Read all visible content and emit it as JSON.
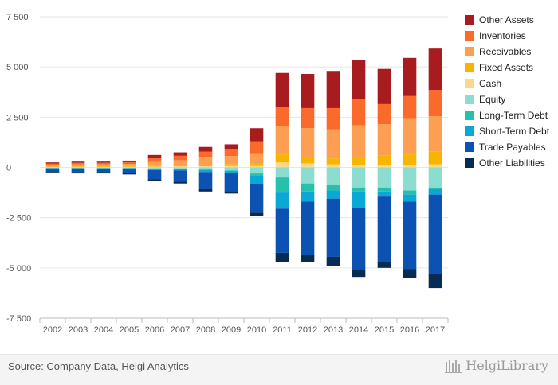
{
  "chart_data": {
    "type": "bar",
    "stacked": true,
    "categories": [
      "2002",
      "2003",
      "2004",
      "2005",
      "2006",
      "2007",
      "2008",
      "2009",
      "2010",
      "2011",
      "2012",
      "2013",
      "2014",
      "2015",
      "2016",
      "2017"
    ],
    "y_ticks": [
      "7 500",
      "5 000",
      "2 500",
      "0",
      "-2 500",
      "-5 000",
      "-7 500"
    ],
    "y_tick_values": [
      7500,
      5000,
      2500,
      0,
      -2500,
      -5000,
      -7500
    ],
    "ylim": [
      -7500,
      7500
    ],
    "legend_position": "right",
    "assets": [
      {
        "name": "Cash",
        "color": "#fdd78a",
        "values": [
          20,
          25,
          25,
          30,
          40,
          50,
          60,
          70,
          80,
          250,
          200,
          150,
          100,
          100,
          100,
          150
        ]
      },
      {
        "name": "Fixed Assets",
        "color": "#f7b500",
        "values": [
          30,
          35,
          35,
          40,
          50,
          60,
          80,
          100,
          120,
          400,
          300,
          300,
          400,
          500,
          550,
          650
        ]
      },
      {
        "name": "Receivables",
        "color": "#fd9f52",
        "values": [
          70,
          90,
          90,
          100,
          180,
          250,
          350,
          400,
          500,
          1400,
          1450,
          1450,
          1600,
          1550,
          1800,
          1750
        ]
      },
      {
        "name": "Inventories",
        "color": "#fa6a2a",
        "values": [
          70,
          80,
          80,
          90,
          180,
          220,
          300,
          350,
          600,
          950,
          1000,
          1050,
          1300,
          1000,
          1100,
          1300
        ]
      },
      {
        "name": "Other Assets",
        "color": "#a81c20",
        "values": [
          60,
          60,
          60,
          80,
          170,
          170,
          230,
          230,
          650,
          1700,
          1700,
          1850,
          1950,
          1750,
          1900,
          2100
        ]
      }
    ],
    "liabilities": [
      {
        "name": "Equity",
        "color": "#8cdcd0",
        "values": [
          -20,
          -20,
          -25,
          -30,
          -60,
          -70,
          -100,
          -150,
          -300,
          -500,
          -800,
          -850,
          -1000,
          -1000,
          -1150,
          -1000
        ]
      },
      {
        "name": "Long-Term Debt",
        "color": "#27c1ab",
        "values": [
          -10,
          -10,
          -10,
          -10,
          -20,
          -20,
          -30,
          -30,
          -100,
          -750,
          -400,
          -300,
          -200,
          -200,
          -200,
          -50
        ]
      },
      {
        "name": "Short-Term Debt",
        "color": "#0aa8d5",
        "values": [
          -20,
          -20,
          -20,
          -20,
          -50,
          -60,
          -100,
          -100,
          -400,
          -800,
          -500,
          -400,
          -800,
          -250,
          -350,
          -300
        ]
      },
      {
        "name": "Trade Payables",
        "color": "#0c52b3",
        "values": [
          -150,
          -180,
          -180,
          -220,
          -450,
          -550,
          -850,
          -900,
          -1450,
          -2200,
          -2650,
          -2900,
          -3100,
          -3250,
          -3350,
          -3950
        ]
      },
      {
        "name": "Other Liabilities",
        "color": "#072c53",
        "values": [
          -50,
          -70,
          -65,
          -70,
          -100,
          -100,
          -120,
          -120,
          -150,
          -450,
          -350,
          -450,
          -350,
          -300,
          -450,
          -700
        ]
      }
    ],
    "legend_order": [
      "Other Assets",
      "Inventories",
      "Receivables",
      "Fixed Assets",
      "Cash",
      "Equity",
      "Long-Term Debt",
      "Short-Term Debt",
      "Trade Payables",
      "Other Liabilities"
    ]
  },
  "footer": {
    "source": "Source: Company Data, Helgi Analytics",
    "brand": "HelgiLibrary"
  }
}
